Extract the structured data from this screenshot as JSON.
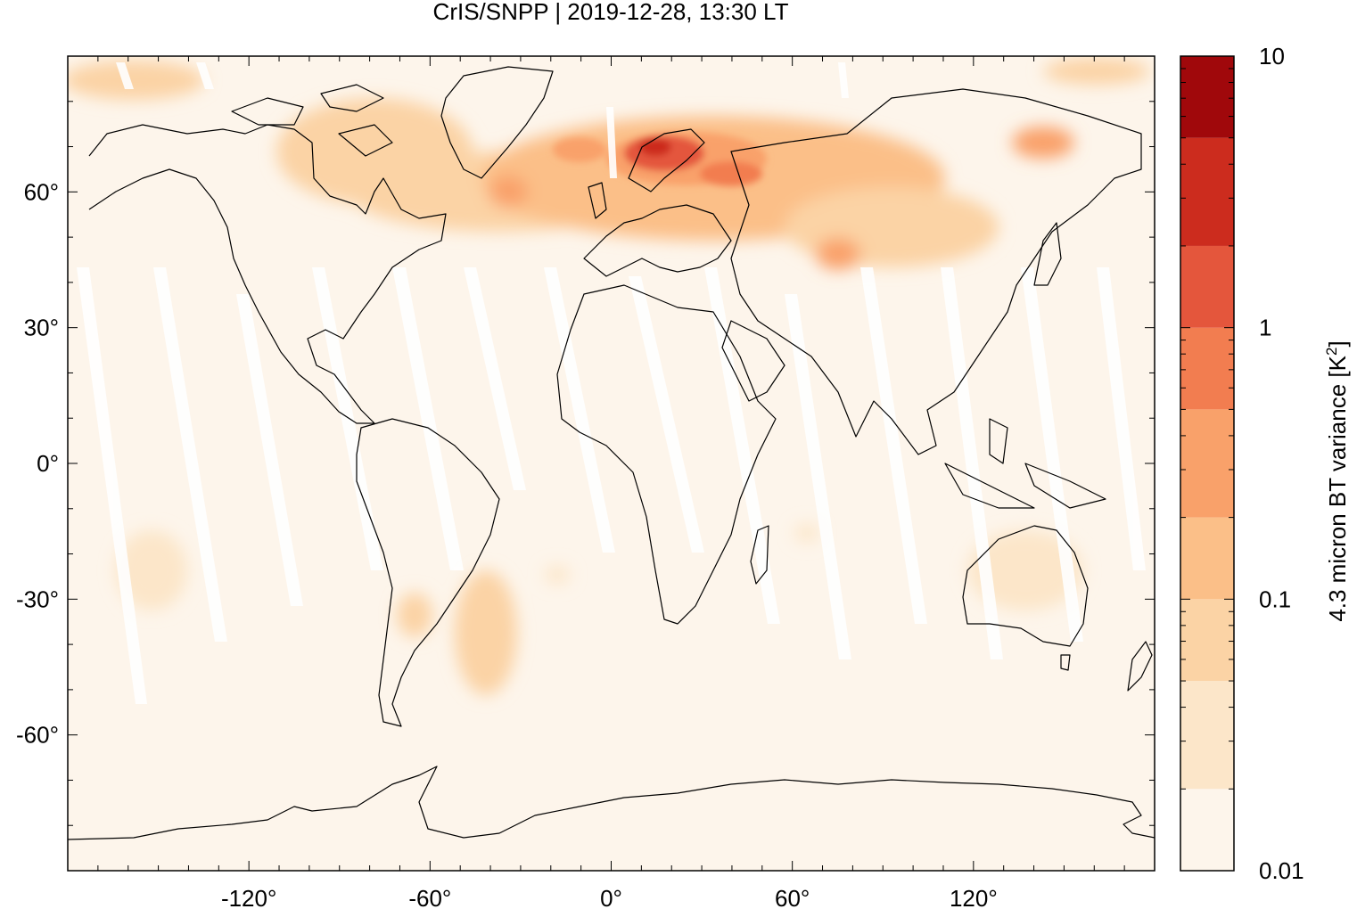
{
  "title": "CrIS/SNPP | 2019-12-28, 13:30 LT",
  "map": {
    "projection": "equirectangular",
    "lon_range": [
      -180,
      180
    ],
    "lat_range": [
      -90,
      90
    ],
    "lon_tick_labels": [
      "-120°",
      "-60°",
      "0°",
      "60°",
      "120°"
    ],
    "lon_tick_values": [
      -120,
      -60,
      0,
      60,
      120
    ],
    "lat_tick_labels": [
      "60°",
      "30°",
      "0°",
      "-30°",
      "-60°"
    ],
    "lat_tick_values": [
      60,
      30,
      0,
      -30,
      -60
    ],
    "background_color": "#fdf5eb",
    "coastline_color": "#000000"
  },
  "colorbar": {
    "label": "4.3 micron BT variance [K",
    "label_superscript": "2",
    "label_close": "]",
    "scale": "log",
    "range": [
      0.01,
      10
    ],
    "tick_labels": [
      "10",
      "1",
      "0.1",
      "0.01"
    ],
    "levels": [
      {
        "from": 0.01,
        "to": 0.02,
        "color": "#fdf5eb"
      },
      {
        "from": 0.02,
        "to": 0.05,
        "color": "#fce6c9"
      },
      {
        "from": 0.05,
        "to": 0.1,
        "color": "#fbd3a5"
      },
      {
        "from": 0.1,
        "to": 0.2,
        "color": "#fbbf88"
      },
      {
        "from": 0.2,
        "to": 0.5,
        "color": "#f9a16a"
      },
      {
        "from": 0.5,
        "to": 1,
        "color": "#f27d50"
      },
      {
        "from": 1,
        "to": 2,
        "color": "#e4563c"
      },
      {
        "from": 2,
        "to": 5,
        "color": "#cc2c1e"
      },
      {
        "from": 5,
        "to": 10,
        "color": "#a0080b"
      }
    ]
  },
  "hotspots": [
    {
      "region": "Scandinavia / NW Russia",
      "intensity": "high",
      "color": "#cc2c1e"
    },
    {
      "region": "North Atlantic / Greenland sea",
      "intensity": "medium",
      "color": "#f27d50"
    },
    {
      "region": "Central Asia",
      "intensity": "medium",
      "color": "#f9a16a"
    },
    {
      "region": "NE Siberia",
      "intensity": "medium",
      "color": "#f27d50"
    },
    {
      "region": "Southern South America",
      "intensity": "low",
      "color": "#fbd3a5"
    },
    {
      "region": "Australia",
      "intensity": "low",
      "color": "#fce6c9"
    }
  ]
}
